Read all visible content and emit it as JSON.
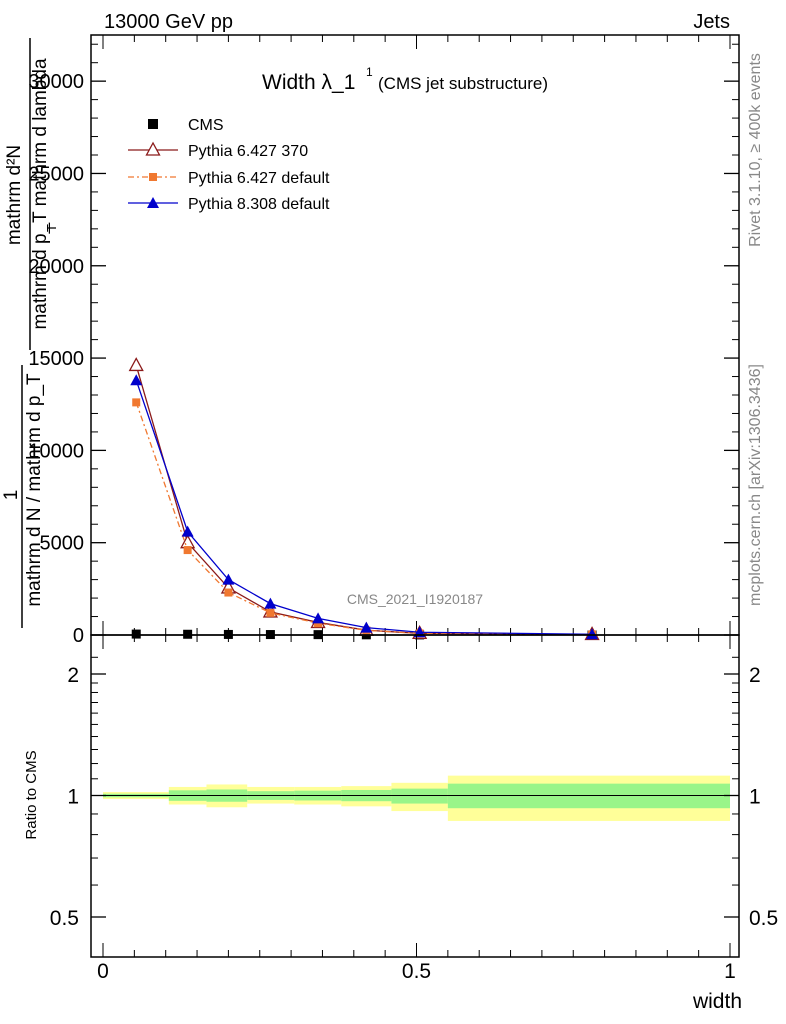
{
  "header": {
    "left": "13000 GeV pp",
    "right": "Jets"
  },
  "side_labels": {
    "rivet": "Rivet 3.1.10, ≥ 400k events",
    "mcplots": "mcplots.cern.ch [arXiv:1306.3436]"
  },
  "chart_data": {
    "type": "line",
    "title": "Width λ_1",
    "title_superscript": "1",
    "subtitle": "(CMS jet substructure)",
    "watermark": "CMS_2021_I1920187",
    "xlabel": "width",
    "ylabel_top": "mathrm d²N",
    "ylabel_bottom": "mathrm d p_T mathrm d lambda",
    "ylabel_subscript": "T",
    "ylabel_one": "1",
    "ylabel_denominator": "mathrm d N / mathrm d p_T",
    "ratio_ylabel": "Ratio to CMS",
    "xlim": [
      0,
      1
    ],
    "ylim_main": [
      0,
      32500
    ],
    "ylim_ratio": [
      0.4,
      2.3
    ],
    "x_ticks": [
      "0",
      "0.5",
      "1"
    ],
    "x_tick_values": [
      0,
      0.5,
      1
    ],
    "y_ticks": [
      "0",
      "5000",
      "10000",
      "15000",
      "20000",
      "25000",
      "30000"
    ],
    "y_tick_values": [
      0,
      5000,
      10000,
      15000,
      20000,
      25000,
      30000
    ],
    "ratio_ticks": [
      "0.5",
      "1",
      "2"
    ],
    "ratio_tick_values": [
      0.5,
      1,
      2
    ],
    "x": [
      0.053,
      0.135,
      0.2,
      0.267,
      0.343,
      0.42,
      0.505,
      0.78
    ],
    "series": [
      {
        "name": "CMS",
        "color": "#000000",
        "marker": "square",
        "values": [
          50,
          40,
          30,
          25,
          20,
          10,
          5,
          2
        ]
      },
      {
        "name": "Pythia 6.427 370",
        "color": "#8b1a1a",
        "marker": "triangle-open",
        "values": [
          14600,
          5000,
          2550,
          1250,
          680,
          260,
          90,
          30
        ]
      },
      {
        "name": "Pythia 6.427 default",
        "color": "#f07830",
        "marker": "square",
        "dash": "6,3,2,3",
        "values": [
          12600,
          4600,
          2300,
          1200,
          640,
          250,
          85,
          25
        ]
      },
      {
        "name": "Pythia 8.308 default",
        "color": "#0000cc",
        "marker": "triangle",
        "values": [
          13800,
          5600,
          3000,
          1700,
          900,
          400,
          150,
          40
        ]
      }
    ],
    "ratio_bands": [
      {
        "x0": 0.0,
        "x1": 0.105,
        "yellow": [
          0.98,
          1.02
        ],
        "green": [
          0.99,
          1.01
        ]
      },
      {
        "x0": 0.105,
        "x1": 0.165,
        "yellow": [
          0.95,
          1.05
        ],
        "green": [
          0.97,
          1.03
        ]
      },
      {
        "x0": 0.165,
        "x1": 0.23,
        "yellow": [
          0.935,
          1.065
        ],
        "green": [
          0.965,
          1.035
        ]
      },
      {
        "x0": 0.23,
        "x1": 0.305,
        "yellow": [
          0.955,
          1.05
        ],
        "green": [
          0.975,
          1.025
        ]
      },
      {
        "x0": 0.305,
        "x1": 0.38,
        "yellow": [
          0.95,
          1.05
        ],
        "green": [
          0.972,
          1.028
        ]
      },
      {
        "x0": 0.38,
        "x1": 0.46,
        "yellow": [
          0.94,
          1.055
        ],
        "green": [
          0.968,
          1.032
        ]
      },
      {
        "x0": 0.46,
        "x1": 0.55,
        "yellow": [
          0.915,
          1.075
        ],
        "green": [
          0.955,
          1.04
        ]
      },
      {
        "x0": 0.55,
        "x1": 1.0,
        "yellow": [
          0.865,
          1.12
        ],
        "green": [
          0.93,
          1.07
        ]
      }
    ]
  }
}
